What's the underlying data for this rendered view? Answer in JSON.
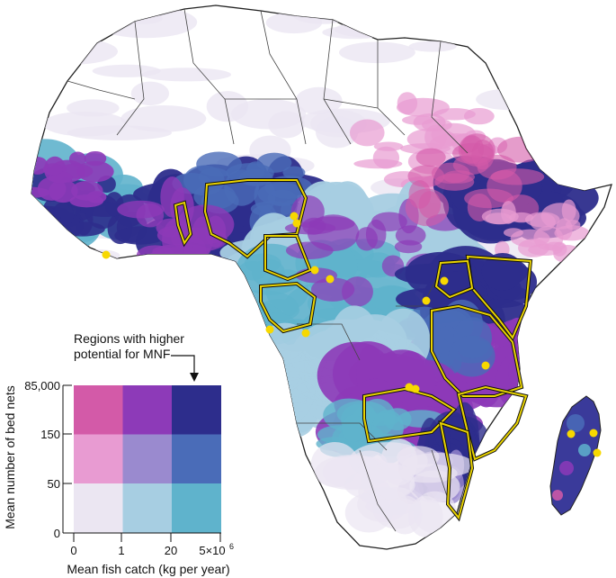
{
  "legend": {
    "annotation_line1": "Regions with higher",
    "annotation_line2": "potential for MNF",
    "y_axis_label": "Mean number of bed nets",
    "x_axis_label": "Mean fish catch (kg per year)",
    "y_ticks": [
      "85,000",
      "150",
      "50",
      "0"
    ],
    "x_ticks": [
      "0",
      "1",
      "20",
      "5×10"
    ],
    "x_tick_exponent": "6",
    "grid_colors": [
      [
        "#d35aa8",
        "#8d3ab8",
        "#2d2d8c"
      ],
      [
        "#e89bd2",
        "#9a8acf",
        "#4a6cb8"
      ],
      [
        "#ebe6f2",
        "#a7cee2",
        "#5fb3cc"
      ]
    ]
  },
  "colors": {
    "ocean": "#ffffff",
    "land": "#ffffff",
    "border": "#333333",
    "mnf_region_outline": "#e8d200",
    "site_marker": "#f7d800"
  }
}
